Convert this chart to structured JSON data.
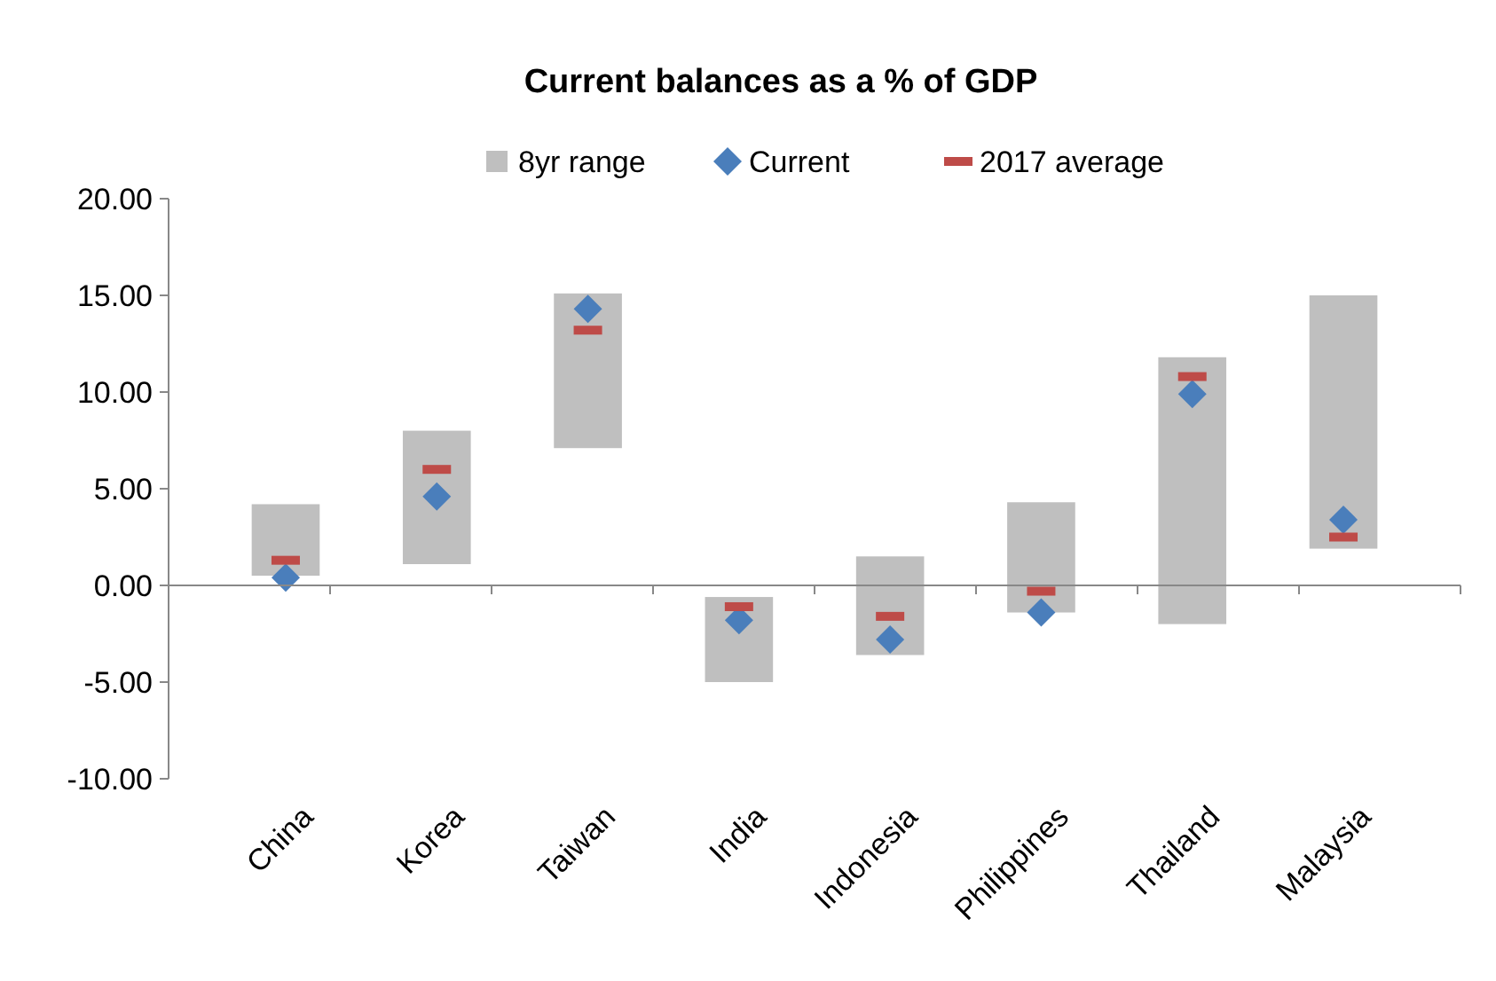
{
  "chart_data": {
    "type": "bar",
    "title": "Current balances as a % of GDP",
    "categories": [
      "China",
      "Korea",
      "Taiwan",
      "India",
      "Indonesia",
      "Philippines",
      "Thailand",
      "Malaysia"
    ],
    "series": [
      {
        "name": "8yr range",
        "color": "#bfbfbf",
        "base": [
          0.5,
          1.1,
          7.1,
          -5.0,
          -3.6,
          -1.4,
          -2.0,
          1.9
        ],
        "values": [
          3.7,
          6.9,
          8.0,
          4.4,
          5.1,
          5.7,
          13.8,
          13.1
        ]
      },
      {
        "name": "Current",
        "type": "scatter",
        "marker": "diamond",
        "color": "#4a7ebb",
        "values": [
          0.4,
          4.6,
          14.3,
          -1.8,
          -2.8,
          -1.4,
          9.9,
          3.4
        ]
      },
      {
        "name": "2017 average",
        "type": "scatter",
        "marker": "square",
        "color": "#be4b48",
        "values": [
          1.3,
          6.0,
          13.2,
          -1.1,
          -1.6,
          -0.3,
          10.8,
          2.5
        ]
      }
    ],
    "ylim": [
      -10,
      20
    ],
    "yticks": [
      {
        "value": -10,
        "label": "-10.00"
      },
      {
        "value": -5,
        "label": "-5.00"
      },
      {
        "value": 0,
        "label": "0.00"
      },
      {
        "value": 5,
        "label": "5.00"
      },
      {
        "value": 10,
        "label": "10.00"
      },
      {
        "value": 15,
        "label": "15.00"
      },
      {
        "value": 20,
        "label": "20.00"
      }
    ],
    "legend": "top"
  }
}
